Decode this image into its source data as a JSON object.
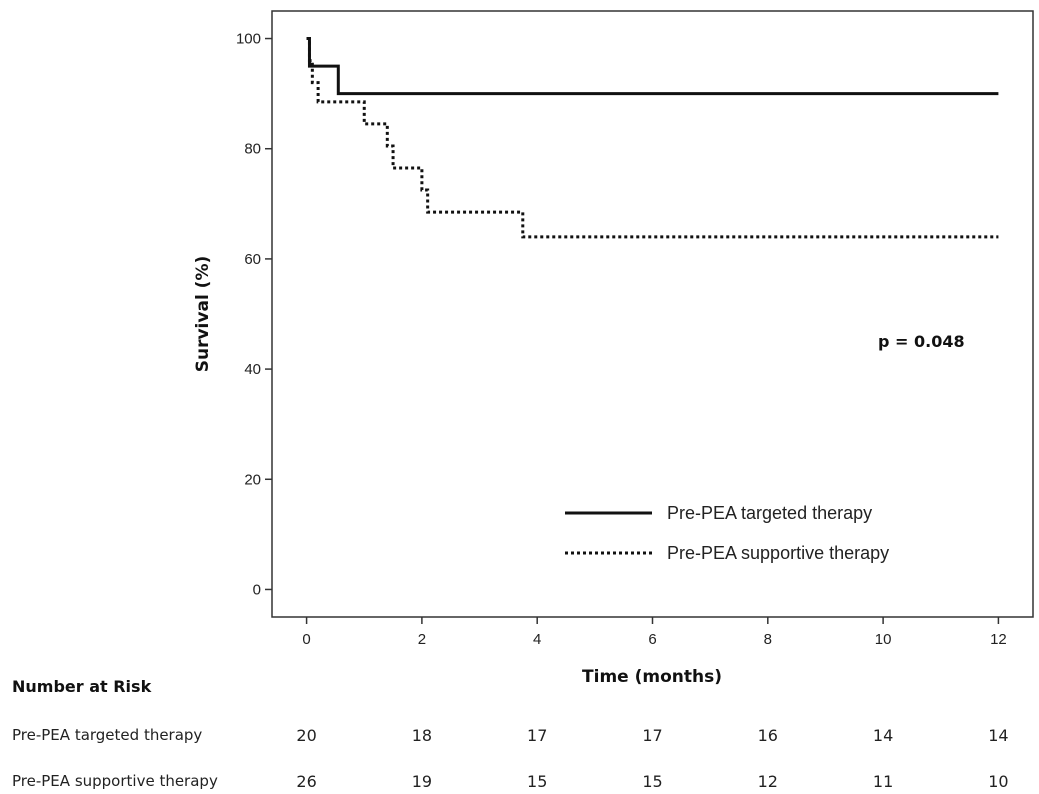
{
  "chart_data": {
    "type": "line",
    "subtype": "kaplan-meier step",
    "xlabel": "Time (months)",
    "ylabel": "Survival (%)",
    "xlim": [
      -0.6,
      12.6
    ],
    "ylim": [
      -5,
      105
    ],
    "xticks": [
      0,
      2,
      4,
      6,
      8,
      10,
      12
    ],
    "yticks": [
      0,
      20,
      40,
      60,
      80,
      100
    ],
    "annotation": "p = 0.048",
    "legend_position": "bottom-right",
    "series": [
      {
        "name": "Pre-PEA targeted therapy",
        "style": "solid",
        "steps": [
          [
            0,
            100
          ],
          [
            0.05,
            95
          ],
          [
            0.55,
            90
          ],
          [
            12,
            90
          ]
        ]
      },
      {
        "name": "Pre-PEA supportive therapy",
        "style": "dotted",
        "steps": [
          [
            0,
            100
          ],
          [
            0.05,
            96
          ],
          [
            0.1,
            92
          ],
          [
            0.2,
            88.5
          ],
          [
            1.0,
            84.5
          ],
          [
            1.4,
            80.5
          ],
          [
            1.5,
            76.5
          ],
          [
            2.0,
            72.5
          ],
          [
            2.1,
            68.5
          ],
          [
            3.75,
            64
          ],
          [
            12,
            64
          ]
        ]
      }
    ]
  },
  "risk_table": {
    "title": "Number at Risk",
    "times": [
      0,
      2,
      4,
      6,
      8,
      10,
      12
    ],
    "rows": [
      {
        "label": "Pre-PEA targeted therapy",
        "values": [
          "20",
          "18",
          "17",
          "17",
          "16",
          "14",
          "14"
        ]
      },
      {
        "label": "Pre-PEA supportive therapy",
        "values": [
          "26",
          "19",
          "15",
          "15",
          "12",
          "11",
          "10"
        ]
      }
    ]
  }
}
